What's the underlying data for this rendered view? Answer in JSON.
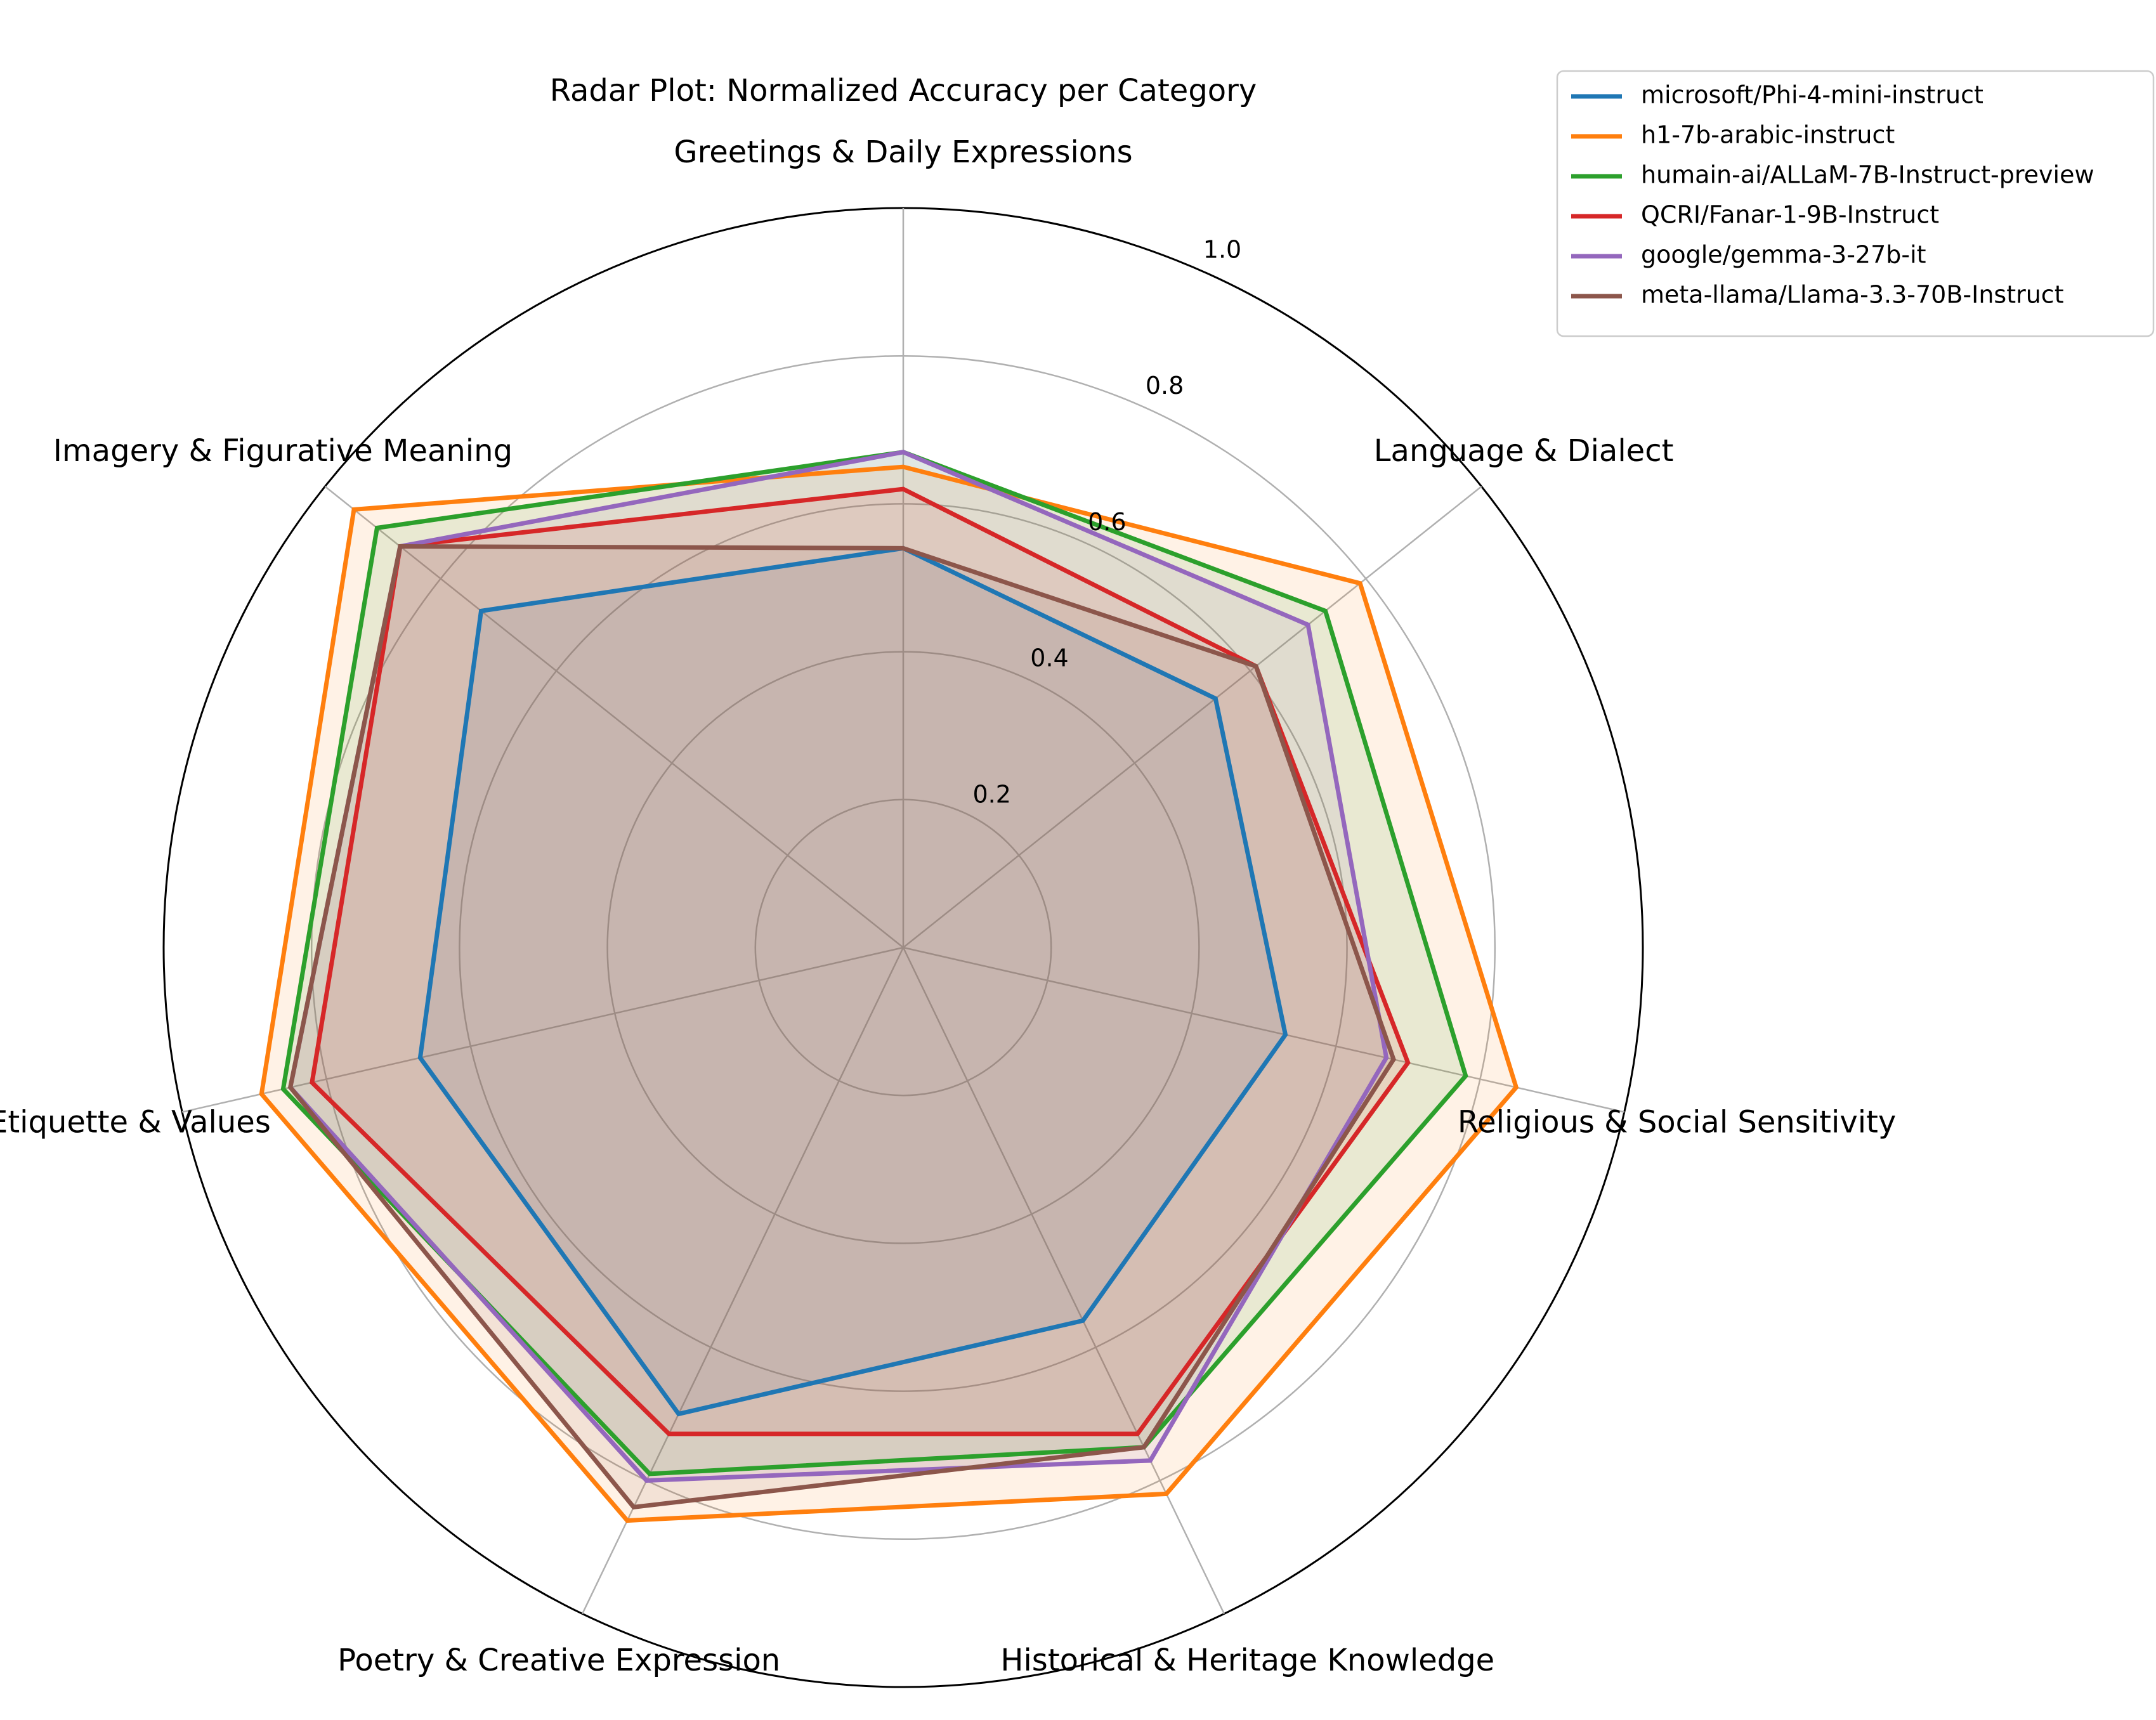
{
  "chart_data": {
    "type": "radar",
    "title": "Radar Plot: Normalized Accuracy per Category",
    "categories": [
      "Greetings & Daily Expressions",
      "Language & Dialect",
      "Religious & Social Sensitivity",
      "Historical & Heritage Knowledge",
      "Poetry & Creative Expression",
      "Etiquette & Values",
      "Imagery & Figurative Meaning"
    ],
    "rlim": [
      0,
      1.0
    ],
    "rticks": [
      0.2,
      0.4,
      0.6,
      0.8,
      1.0
    ],
    "rtick_labels": [
      "0.2",
      "0.4",
      "0.6",
      "0.8",
      "1.0"
    ],
    "grid": true,
    "legend_position": "top-right",
    "series": [
      {
        "name": "microsoft/Phi-4-mini-instruct",
        "color": "#1f77b4",
        "values": [
          0.54,
          0.54,
          0.53,
          0.56,
          0.7,
          0.67,
          0.73
        ]
      },
      {
        "name": "h1-7b-arabic-instruct",
        "color": "#ff7f0e",
        "values": [
          0.65,
          0.79,
          0.85,
          0.82,
          0.86,
          0.89,
          0.95
        ]
      },
      {
        "name": "humain-ai/ALLaM-7B-Instruct-preview",
        "color": "#2ca02c",
        "values": [
          0.67,
          0.73,
          0.78,
          0.75,
          0.79,
          0.86,
          0.91
        ]
      },
      {
        "name": "QCRI/Fanar-1-9B-Instruct",
        "color": "#d62728",
        "values": [
          0.62,
          0.61,
          0.7,
          0.73,
          0.73,
          0.82,
          0.87
        ]
      },
      {
        "name": "google/gemma-3-27b-it",
        "color": "#9467bd",
        "values": [
          0.67,
          0.7,
          0.67,
          0.77,
          0.8,
          0.85,
          0.87
        ]
      },
      {
        "name": "meta-llama/Llama-3.3-70B-Instruct",
        "color": "#8c564b",
        "values": [
          0.54,
          0.61,
          0.68,
          0.75,
          0.84,
          0.85,
          0.87
        ]
      }
    ]
  }
}
